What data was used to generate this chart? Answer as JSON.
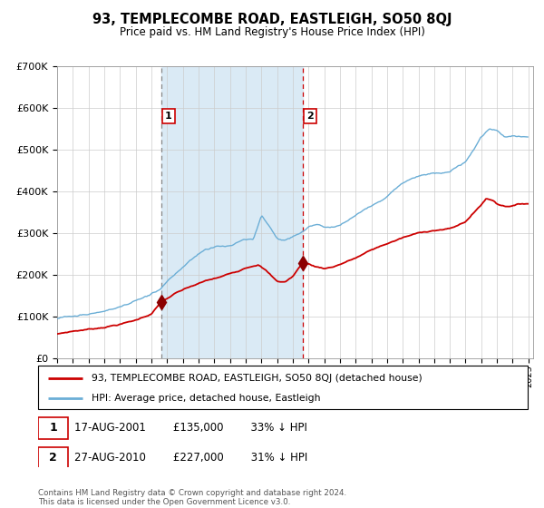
{
  "title": "93, TEMPLECOMBE ROAD, EASTLEIGH, SO50 8QJ",
  "subtitle": "Price paid vs. HM Land Registry's House Price Index (HPI)",
  "legend_line1": "93, TEMPLECOMBE ROAD, EASTLEIGH, SO50 8QJ (detached house)",
  "legend_line2": "HPI: Average price, detached house, Eastleigh",
  "transaction1_price": 135000,
  "transaction2_price": 227000,
  "transaction1_date_text": "17-AUG-2001",
  "transaction2_date_text": "27-AUG-2010",
  "transaction1_info": "17-AUG-2001        £135,000        33% ↓ HPI",
  "transaction2_info": "27-AUG-2010        £227,000        31% ↓ HPI",
  "footnote": "Contains HM Land Registry data © Crown copyright and database right 2024.\nThis data is licensed under the Open Government Licence v3.0.",
  "hpi_color": "#6baed6",
  "price_color": "#cc0000",
  "marker_color": "#8b0000",
  "shading_color": "#daeaf5",
  "grid_color": "#cccccc",
  "background_color": "#ffffff",
  "yticks": [
    0,
    100000,
    200000,
    300000,
    400000,
    500000,
    600000,
    700000
  ],
  "t1_year": 2001.62,
  "t2_year": 2010.62
}
